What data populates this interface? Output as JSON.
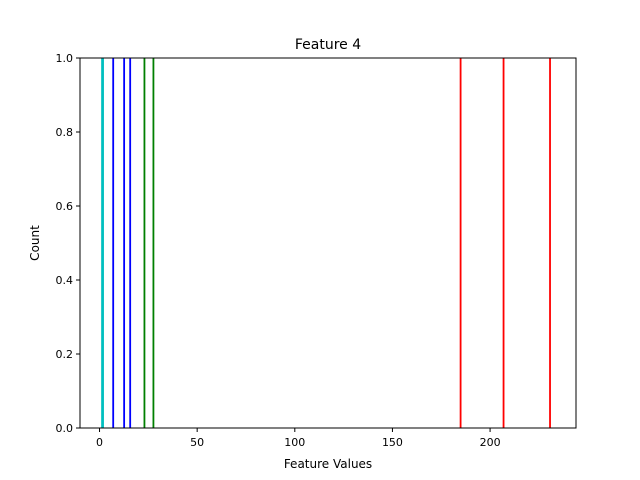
{
  "chart_data": {
    "type": "bar",
    "title": "Feature 4",
    "xlabel": "Feature Values",
    "ylabel": "Count",
    "xlim": [
      -10,
      244
    ],
    "ylim": [
      0,
      1.0
    ],
    "xticks": [
      0,
      50,
      100,
      150,
      200
    ],
    "yticks": [
      0.0,
      0.2,
      0.4,
      0.6,
      0.8,
      1.0
    ],
    "grid": false,
    "series": [
      {
        "color": "#00bfbf",
        "bars": [
          {
            "x": 1.3,
            "value": 1.0
          },
          {
            "x": 1.8,
            "value": 1.0
          }
        ]
      },
      {
        "color": "#0000ff",
        "bars": [
          {
            "x": 7.0,
            "value": 1.0
          },
          {
            "x": 12.6,
            "value": 1.0
          },
          {
            "x": 15.7,
            "value": 1.0
          }
        ]
      },
      {
        "color": "#008000",
        "bars": [
          {
            "x": 23.0,
            "value": 1.0
          },
          {
            "x": 27.6,
            "value": 1.0
          }
        ]
      },
      {
        "color": "#ff0000",
        "bars": [
          {
            "x": 184.9,
            "value": 1.0
          },
          {
            "x": 206.9,
            "value": 1.0
          },
          {
            "x": 230.7,
            "value": 1.0
          }
        ]
      }
    ]
  }
}
